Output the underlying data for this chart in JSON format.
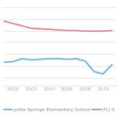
{
  "years": [
    1999,
    2000,
    2001,
    2002,
    2003,
    2004,
    2005,
    2006,
    2007,
    2008,
    2009,
    2010,
    2011
  ],
  "school_values": [
    48,
    48.5,
    51,
    50,
    50.5,
    51,
    51,
    50.5,
    51,
    49,
    40,
    38,
    46
  ],
  "fl_values": [
    83,
    81,
    79,
    77,
    76.5,
    76,
    75.5,
    75,
    75,
    74.5,
    74.5,
    74.5,
    75
  ],
  "school_color": "#5aace8",
  "fl_color": "#e07878",
  "bg_color": "#ffffff",
  "grid_color": "#e0e0e0",
  "school_label": "yette Springs Elementary School",
  "fl_label": "(FL) S",
  "xlim": [
    1998.8,
    2011.5
  ],
  "xticks": [
    2000,
    2002,
    2004,
    2006,
    2008,
    2010
  ],
  "ylim": [
    28,
    98
  ],
  "legend_fontsize": 4.2,
  "tick_fontsize": 4.5,
  "linewidth": 1.2
}
